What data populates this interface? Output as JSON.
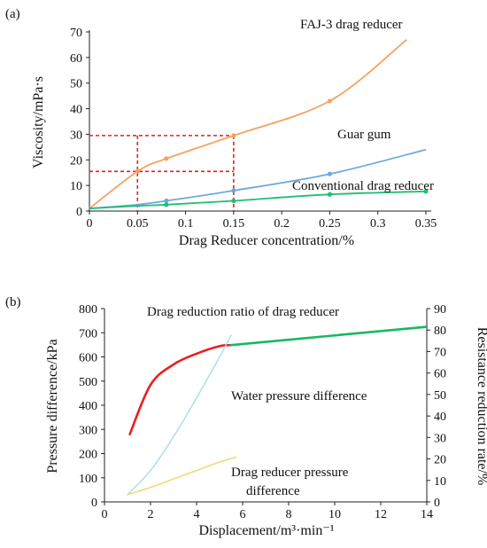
{
  "chart_data": [
    {
      "type": "line",
      "panel_label": "(a)",
      "xlabel": "Drag Reducer concentration/%",
      "ylabel": "Viscosity/mPa·s",
      "xlim": [
        0,
        0.35
      ],
      "ylim": [
        0,
        70
      ],
      "x_ticks": [
        0,
        0.05,
        0.1,
        0.15,
        0.2,
        0.25,
        0.3,
        0.35
      ],
      "x_tick_labels": [
        "0",
        "0.05",
        "0.1",
        "0.15",
        "0.2",
        "0.25",
        "0.3",
        "0.35"
      ],
      "y_ticks": [
        0,
        10,
        20,
        30,
        40,
        50,
        60,
        70
      ],
      "y_tick_labels": [
        "0",
        "10",
        "20",
        "30",
        "40",
        "50",
        "60",
        "70"
      ],
      "grid": false,
      "series": [
        {
          "name": "FAJ-3 drag reducer",
          "color": "#f4a261",
          "x": [
            0,
            0.05,
            0.08,
            0.15,
            0.25,
            0.33
          ],
          "y": [
            1,
            15.5,
            20.5,
            29.5,
            43,
            67
          ],
          "markers_x": [
            0.05,
            0.08,
            0.15,
            0.25
          ]
        },
        {
          "name": "Guar gum",
          "color": "#6fa8dc",
          "x": [
            0,
            0.05,
            0.08,
            0.15,
            0.25,
            0.35
          ],
          "y": [
            1,
            2.5,
            4,
            8,
            14.5,
            24
          ],
          "markers_x": [
            0.08,
            0.15,
            0.25
          ]
        },
        {
          "name": "Conventional drag reducer",
          "color": "#1fbf74",
          "x": [
            0,
            0.05,
            0.08,
            0.15,
            0.25,
            0.35
          ],
          "y": [
            1,
            2,
            2.5,
            4,
            6.5,
            7.7
          ],
          "markers_x": [
            0.08,
            0.15,
            0.25,
            0.35
          ]
        }
      ],
      "reference_lines": {
        "color": "#e02020",
        "x_at": [
          0.05,
          0.15
        ],
        "y_at": [
          15.5,
          29.5
        ]
      }
    },
    {
      "type": "line",
      "panel_label": "(b)",
      "xlabel": "Displacement/m³·min⁻¹",
      "ylabel": "Pressure difference/kPa",
      "y2label": "Resistance reduction rate/%",
      "xlim": [
        0,
        14
      ],
      "ylim": [
        0,
        800
      ],
      "y2lim": [
        0,
        90
      ],
      "x_ticks": [
        0,
        2,
        4,
        6,
        8,
        10,
        12,
        14
      ],
      "x_tick_labels": [
        "0",
        "2",
        "4",
        "6",
        "8",
        "10",
        "12",
        "14"
      ],
      "y_ticks": [
        0,
        100,
        200,
        300,
        400,
        500,
        600,
        700,
        800
      ],
      "y_tick_labels": [
        "0",
        "100",
        "200",
        "300",
        "400",
        "500",
        "600",
        "700",
        "800"
      ],
      "y2_ticks": [
        0,
        10,
        20,
        30,
        40,
        50,
        60,
        70,
        80,
        90
      ],
      "y2_tick_labels": [
        "0",
        "10",
        "20",
        "30",
        "40",
        "50",
        "60",
        "70",
        "80",
        "90"
      ],
      "grid": false,
      "series": [
        {
          "name": "Drag reduction ratio of drag reducer",
          "axis": "right",
          "color": "#e82020",
          "x": [
            1.1,
            2,
            3,
            4,
            5,
            5.5
          ],
          "y": [
            31.5,
            54.5,
            64,
            69,
            72.5,
            73
          ]
        },
        {
          "name": "Drag reduction ratio of drag reducer",
          "axis": "right",
          "color": "#18b860",
          "x": [
            5.5,
            14
          ],
          "y": [
            73,
            81.5
          ]
        },
        {
          "name": "Water pressure difference",
          "axis": "left",
          "color": "#a8dde8",
          "x": [
            1,
            2,
            3,
            4,
            5,
            5.5
          ],
          "y": [
            30,
            130,
            270,
            430,
            600,
            690
          ]
        },
        {
          "name": "Drag reducer pressure difference",
          "axis": "left",
          "color": "#f2d878",
          "x": [
            1,
            2,
            3,
            4,
            5,
            5.7
          ],
          "y": [
            30,
            60,
            95,
            130,
            165,
            185
          ]
        }
      ],
      "annotations": {
        "ratio": "Drag reduction ratio of drag reducer",
        "water": "Water pressure difference",
        "reducer_line1": "Drag reducer pressure",
        "reducer_line2": "difference"
      }
    }
  ]
}
